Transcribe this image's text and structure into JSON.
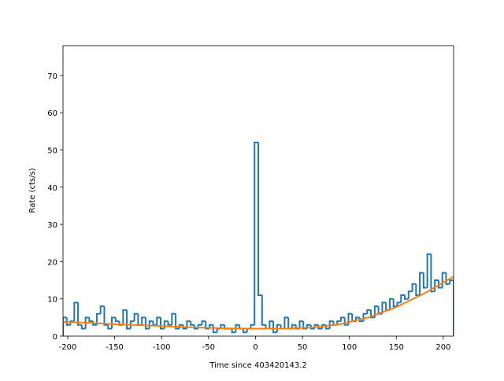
{
  "chart_data": [
    {
      "type": "histogram",
      "xlabel": "Time since 403420143.2",
      "ylabel": "Rate (cts/s)",
      "color": "#1f77b4",
      "bins": [
        -205,
        -201,
        -197,
        -193,
        -189,
        -185,
        -181,
        -177,
        -173,
        -169,
        -165,
        -161,
        -157,
        -153,
        -149,
        -145,
        -141,
        -137,
        -133,
        -129,
        -125,
        -121,
        -117,
        -113,
        -109,
        -105,
        -101,
        -97,
        -93,
        -89,
        -85,
        -81,
        -77,
        -73,
        -69,
        -65,
        -61,
        -57,
        -53,
        -49,
        -45,
        -41,
        -37,
        -33,
        -29,
        -25,
        -21,
        -17,
        -13,
        -9,
        -5,
        -1,
        3,
        7,
        11,
        15,
        19,
        23,
        27,
        31,
        35,
        39,
        43,
        47,
        51,
        55,
        59,
        63,
        67,
        71,
        75,
        79,
        83,
        87,
        91,
        95,
        99,
        103,
        107,
        111,
        115,
        119,
        123,
        127,
        131,
        135,
        139,
        143,
        147,
        151,
        155,
        159,
        163,
        167,
        171,
        175,
        179,
        183,
        187,
        191,
        195,
        199,
        203,
        207,
        211
      ],
      "values": [
        5,
        3,
        4,
        9,
        3,
        2,
        5,
        4,
        3,
        6,
        8,
        3,
        2,
        5,
        4,
        3,
        7,
        2,
        4,
        6,
        3,
        5,
        2,
        4,
        3,
        5,
        2,
        4,
        3,
        6,
        2,
        3,
        2,
        4,
        3,
        2,
        3,
        4,
        2,
        3,
        1,
        2,
        3,
        2,
        2,
        1,
        3,
        2,
        1,
        2,
        3,
        52,
        11,
        3,
        2,
        4,
        1,
        3,
        2,
        5,
        2,
        3,
        2,
        4,
        2,
        3,
        2,
        3,
        2,
        3,
        2,
        4,
        3,
        4,
        5,
        3,
        6,
        4,
        5,
        4,
        6,
        7,
        5,
        8,
        6,
        9,
        7,
        10,
        8,
        9,
        11,
        10,
        12,
        14,
        11,
        17,
        13,
        22,
        12,
        15,
        13,
        17,
        14,
        15
      ],
      "xlim": [
        -205,
        211
      ],
      "ylim": [
        0,
        78
      ],
      "xticks": [
        -200,
        -150,
        -100,
        -50,
        0,
        50,
        100,
        150,
        200
      ],
      "yticks": [
        0,
        10,
        20,
        30,
        40,
        50,
        60,
        70
      ]
    },
    {
      "type": "line",
      "color": "#ff7f0e",
      "x": [
        -205,
        -180,
        -150,
        -120,
        -90,
        -60,
        -30,
        0,
        30,
        60,
        90,
        120,
        150,
        180,
        211
      ],
      "values": [
        3.8,
        3.6,
        3.2,
        2.9,
        2.6,
        2.3,
        2.1,
        2.0,
        2.0,
        2.3,
        3.2,
        5.0,
        7.8,
        11.5,
        16.0
      ]
    }
  ]
}
